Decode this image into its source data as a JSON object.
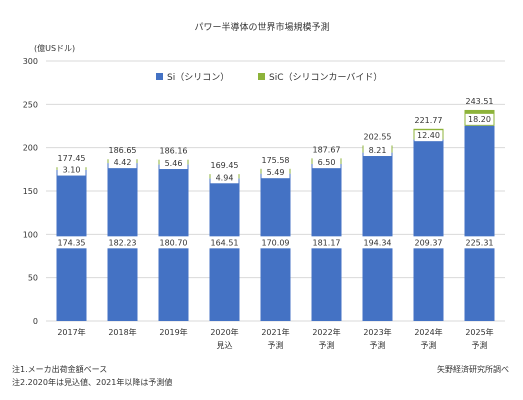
{
  "chart_data": {
    "type": "bar",
    "stacked": true,
    "title": "パワー半導体の世界市場規模予測",
    "ylabel": "(億USドル)",
    "ylim": [
      0,
      300
    ],
    "yticks": [
      0,
      50,
      100,
      150,
      200,
      250,
      300
    ],
    "grid": true,
    "legend_position": "top",
    "categories": [
      "2017年",
      "2018年",
      "2019年",
      "2020年",
      "2021年",
      "2022年",
      "2023年",
      "2024年",
      "2025年"
    ],
    "category_sublabels": [
      "",
      "",
      "",
      "見込",
      "予測",
      "予測",
      "予測",
      "予測",
      "予測"
    ],
    "series": [
      {
        "name": "Si（シリコン）",
        "color": "#4472c4",
        "values": [
          174.35,
          182.23,
          180.7,
          164.51,
          170.09,
          181.17,
          194.34,
          209.37,
          225.31
        ],
        "labels": [
          "174.35",
          "182.23",
          "180.70",
          "164.51",
          "170.09",
          "181.17",
          "194.34",
          "209.37",
          "225.31"
        ]
      },
      {
        "name": "SiC（シリコンカーバイド）",
        "color": "#8db33a",
        "values": [
          3.1,
          4.42,
          5.46,
          4.94,
          5.49,
          6.5,
          8.21,
          12.4,
          18.2
        ],
        "labels": [
          "3.10",
          "4.42",
          "5.46",
          "4.94",
          "5.49",
          "6.50",
          "8.21",
          "12.40",
          "18.20"
        ]
      }
    ],
    "totals": [
      "177.45",
      "186.65",
      "186.16",
      "169.45",
      "175.58",
      "187.67",
      "202.55",
      "221.77",
      "243.51"
    ]
  },
  "notes": [
    "注1.メーカ出荷金額ベース",
    "注2.2020年は見込値、2021年以降は予測値"
  ],
  "source": "矢野経済研究所調べ"
}
